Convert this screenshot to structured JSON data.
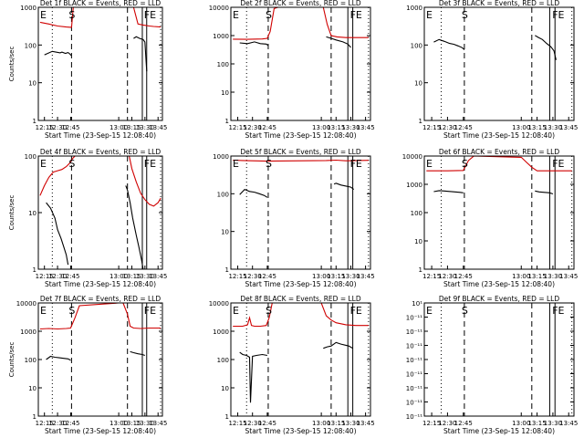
{
  "chart_data": [
    {
      "type": "line",
      "title": "Det 1f BLACK = Events, RED = LLD",
      "ylabel": "Counts/sec",
      "xlabel": "Start Time (23-Sep-15 12:08:40)",
      "yscale": "log",
      "ylim": [
        1,
        1000
      ],
      "yticks": [
        "1",
        "10",
        "100",
        "1000"
      ],
      "xticks": [
        "12:15",
        "12:30",
        "12:45",
        "13:00",
        "13:15",
        "13:30",
        "13:45"
      ],
      "markers": [
        "E",
        "S",
        "FE"
      ],
      "series": [
        {
          "name": "Events",
          "color": "#000000",
          "x": [
            12.15,
            12.24,
            12.33,
            12.35,
            12.39,
            12.42,
            12.44,
            12.46
          ],
          "y": [
            55,
            68,
            62,
            65,
            60,
            63,
            58,
            52
          ]
        },
        {
          "name": "LLD",
          "color": "#d00000",
          "x": [
            12.1,
            12.2,
            12.3,
            12.4,
            12.45,
            12.46
          ],
          "y": [
            400,
            360,
            320,
            300,
            295,
            290
          ]
        },
        {
          "name": "LLD",
          "color": "#d00000",
          "x": [
            12.46,
            12.48,
            12.55
          ],
          "y": [
            290,
            1000,
            1000
          ]
        },
        {
          "name": "LLD",
          "color": "#d00000",
          "x": [
            13.17,
            13.22,
            13.28,
            13.35,
            13.4,
            13.48
          ],
          "y": [
            1000,
            360,
            340,
            320,
            310,
            300
          ]
        },
        {
          "name": "Events",
          "color": "#000000",
          "x": [
            13.17,
            13.2,
            13.24,
            13.28,
            13.3,
            13.32
          ],
          "y": [
            150,
            165,
            150,
            140,
            120,
            20
          ]
        }
      ]
    },
    {
      "type": "line",
      "title": "Det 2f BLACK = Events, RED = LLD",
      "ylabel": "",
      "xlabel": "Start Time (23-Sep-15 12:08:40)",
      "yscale": "log",
      "ylim": [
        1,
        10000
      ],
      "yticks": [
        "1",
        "10",
        "100",
        "1000",
        "10000"
      ],
      "xticks": [
        "12:15",
        "12:30",
        "12:45",
        "13:00",
        "13:15",
        "13:30",
        "13:45"
      ],
      "markers": [
        "E",
        "S",
        "FE"
      ],
      "series": [
        {
          "name": "Events",
          "color": "#000000",
          "x": [
            12.17,
            12.25,
            12.32,
            12.38,
            12.44,
            12.46
          ],
          "y": [
            550,
            520,
            600,
            520,
            500,
            450
          ]
        },
        {
          "name": "LLD",
          "color": "#d00000",
          "x": [
            12.1,
            12.25,
            12.4,
            12.45,
            12.48,
            12.52,
            12.56
          ],
          "y": [
            750,
            740,
            760,
            800,
            1400,
            9000,
            10000
          ]
        },
        {
          "name": "LLD",
          "color": "#d00000",
          "x": [
            13.02,
            13.06,
            13.1,
            13.16,
            13.25,
            13.35,
            13.48
          ],
          "y": [
            10000,
            2500,
            1000,
            900,
            850,
            850,
            850
          ]
        },
        {
          "name": "Events",
          "color": "#000000",
          "x": [
            13.05,
            13.1,
            13.15,
            13.22,
            13.27,
            13.3
          ],
          "y": [
            900,
            800,
            700,
            600,
            500,
            380
          ]
        }
      ]
    },
    {
      "type": "line",
      "title": "Det 3f BLACK = Events, RED = LLD",
      "ylabel": "",
      "xlabel": "Start Time (23-Sep-15 12:08:40)",
      "yscale": "log",
      "ylim": [
        1,
        1000
      ],
      "yticks": [
        "1",
        "10",
        "100",
        "1000"
      ],
      "xticks": [
        "12:15",
        "12:30",
        "12:45",
        "13:00",
        "13:15",
        "13:30",
        "13:45"
      ],
      "markers": [
        "E",
        "S",
        "FE"
      ],
      "series": [
        {
          "name": "Events",
          "color": "#000000",
          "x": [
            12.17,
            12.22,
            12.27,
            12.32,
            12.36,
            12.4,
            12.44,
            12.46
          ],
          "y": [
            120,
            140,
            125,
            110,
            105,
            95,
            85,
            75
          ]
        },
        {
          "name": "Events",
          "color": "#000000",
          "x": [
            13.13,
            13.16,
            13.2,
            13.24,
            13.28,
            13.31,
            13.33
          ],
          "y": [
            180,
            160,
            140,
            110,
            90,
            70,
            40
          ]
        }
      ]
    },
    {
      "type": "line",
      "title": "Det 4f BLACK = Events, RED = LLD",
      "ylabel": "Counts/sec",
      "xlabel": "Start Time (23-Sep-15 12:08:40)",
      "yscale": "log",
      "ylim": [
        1,
        100
      ],
      "yticks": [
        "1",
        "10",
        "100"
      ],
      "xticks": [
        "12:15",
        "12:30",
        "12:45",
        "13:00",
        "13:15",
        "13:30",
        "13:45"
      ],
      "markers": [
        "E",
        "S",
        "FE"
      ],
      "series": [
        {
          "name": "LLD",
          "color": "#d00000",
          "x": [
            12.1,
            12.15,
            12.2,
            12.25,
            12.3,
            12.35,
            12.4,
            12.44,
            12.47,
            12.5
          ],
          "y": [
            20,
            30,
            42,
            52,
            55,
            58,
            65,
            75,
            90,
            100
          ]
        },
        {
          "name": "LLD",
          "color": "#d00000",
          "x": [
            13.12,
            13.15,
            13.2,
            13.25,
            13.3,
            13.35,
            13.4,
            13.45,
            13.48
          ],
          "y": [
            100,
            60,
            35,
            22,
            17,
            14,
            13,
            15,
            18
          ]
        },
        {
          "name": "Events",
          "color": "#000000",
          "x": [
            12.17,
            12.22,
            12.27,
            12.3,
            12.34,
            12.37,
            12.4,
            12.42
          ],
          "y": [
            15,
            12,
            8,
            5,
            3.5,
            2.5,
            1.8,
            1.2
          ]
        },
        {
          "name": "Events",
          "color": "#000000",
          "x": [
            13.08,
            13.1,
            13.13,
            13.16,
            13.2,
            13.23,
            13.26,
            13.28
          ],
          "y": [
            30,
            25,
            15,
            8,
            4,
            2.5,
            1.5,
            1
          ]
        }
      ]
    },
    {
      "type": "line",
      "title": "Det 5f BLACK = Events, RED = LLD",
      "ylabel": "",
      "xlabel": "Start Time (23-Sep-15 12:08:40)",
      "yscale": "log",
      "ylim": [
        1,
        1000
      ],
      "yticks": [
        "1",
        "10",
        "100",
        "1000"
      ],
      "xticks": [
        "12:15",
        "12:30",
        "12:45",
        "13:00",
        "13:15",
        "13:30",
        "13:45"
      ],
      "markers": [
        "E",
        "S",
        "FE"
      ],
      "series": [
        {
          "name": "LLD",
          "color": "#d00000",
          "x": [
            12.1,
            12.2,
            12.3,
            12.4,
            12.45,
            12.55,
            13.05,
            13.15,
            13.25,
            13.35,
            13.48
          ],
          "y": [
            780,
            760,
            750,
            740,
            730,
            740,
            760,
            780,
            750,
            760,
            770
          ]
        },
        {
          "name": "Events",
          "color": "#000000",
          "x": [
            12.17,
            12.22,
            12.27,
            12.32,
            12.37,
            12.42,
            12.45
          ],
          "y": [
            95,
            130,
            115,
            110,
            100,
            90,
            80
          ]
        },
        {
          "name": "Events",
          "color": "#000000",
          "x": [
            13.13,
            13.15,
            13.2,
            13.25,
            13.3,
            13.33
          ],
          "y": [
            180,
            190,
            170,
            160,
            150,
            130
          ]
        }
      ]
    },
    {
      "type": "line",
      "title": "Det 6f BLACK = Events, RED = LLD",
      "ylabel": "",
      "xlabel": "Start Time (23-Sep-15 12:08:40)",
      "yscale": "log",
      "ylim": [
        1,
        10000
      ],
      "yticks": [
        "1",
        "10",
        "100",
        "1000",
        "10000"
      ],
      "xticks": [
        "12:15",
        "12:30",
        "12:45",
        "13:00",
        "13:15",
        "13:30",
        "13:45"
      ],
      "markers": [
        "E",
        "S",
        "FE"
      ],
      "series": [
        {
          "name": "LLD",
          "color": "#d00000",
          "x": [
            12.1,
            12.3,
            12.45,
            12.5,
            12.55,
            13.0,
            13.05,
            13.1,
            13.15,
            13.3,
            13.48
          ],
          "y": [
            3000,
            3000,
            3100,
            7000,
            10000,
            9000,
            6000,
            4000,
            3000,
            3000,
            3000
          ]
        },
        {
          "name": "Events",
          "color": "#000000",
          "x": [
            12.17,
            12.22,
            12.27,
            12.32,
            12.37,
            12.42,
            12.45
          ],
          "y": [
            550,
            600,
            580,
            560,
            540,
            520,
            500
          ]
        },
        {
          "name": "Events",
          "color": "#000000",
          "x": [
            13.13,
            13.17,
            13.22,
            13.27,
            13.3
          ],
          "y": [
            580,
            540,
            520,
            500,
            460
          ]
        }
      ]
    },
    {
      "type": "line",
      "title": "Det 7f BLACK = Events, RED = LLD",
      "ylabel": "Counts/sec",
      "xlabel": "Start Time (23-Sep-15 12:08:40)",
      "yscale": "log",
      "ylim": [
        1,
        10000
      ],
      "yticks": [
        "1",
        "10",
        "100",
        "1000",
        "10000"
      ],
      "xticks": [
        "12:15",
        "12:30",
        "12:45",
        "13:00",
        "13:15",
        "13:30",
        "13:45"
      ],
      "markers": [
        "E",
        "S",
        "FE"
      ],
      "series": [
        {
          "name": "LLD",
          "color": "#d00000",
          "x": [
            12.1,
            12.2,
            12.3,
            12.4,
            12.45,
            12.5,
            12.55,
            13.0
          ],
          "y": [
            1200,
            1250,
            1200,
            1250,
            1300,
            3000,
            8000,
            10000
          ]
        },
        {
          "name": "LLD",
          "color": "#d00000",
          "x": [
            13.05,
            13.1,
            13.13,
            13.17,
            13.25,
            13.35,
            13.48
          ],
          "y": [
            10000,
            4000,
            1500,
            1300,
            1250,
            1300,
            1300
          ]
        },
        {
          "name": "Events",
          "color": "#000000",
          "x": [
            12.17,
            12.22,
            12.27,
            12.32,
            12.37,
            12.42,
            12.45
          ],
          "y": [
            100,
            130,
            120,
            115,
            110,
            105,
            95
          ]
        },
        {
          "name": "Events",
          "color": "#000000",
          "x": [
            13.13,
            13.17,
            13.22,
            13.27,
            13.3
          ],
          "y": [
            190,
            175,
            160,
            150,
            140
          ]
        }
      ]
    },
    {
      "type": "line",
      "title": "Det 8f BLACK = Events, RED = LLD",
      "ylabel": "",
      "xlabel": "Start Time (23-Sep-15 12:08:40)",
      "yscale": "log",
      "ylim": [
        1,
        10000
      ],
      "yticks": [
        "1",
        "10",
        "100",
        "1000",
        "10000"
      ],
      "xticks": [
        "12:15",
        "12:30",
        "12:45",
        "13:00",
        "13:15",
        "13:30",
        "13:45"
      ],
      "markers": [
        "E",
        "S",
        "FE"
      ],
      "series": [
        {
          "name": "LLD",
          "color": "#d00000",
          "x": [
            12.1,
            12.2,
            12.25,
            12.27,
            12.29,
            12.32,
            12.38,
            12.44,
            12.47,
            12.5
          ],
          "y": [
            1500,
            1500,
            1700,
            3000,
            1600,
            1500,
            1500,
            1600,
            3000,
            10000
          ]
        },
        {
          "name": "LLD",
          "color": "#d00000",
          "x": [
            13.0,
            13.05,
            13.1,
            13.15,
            13.25,
            13.35,
            13.48
          ],
          "y": [
            10000,
            3500,
            2500,
            2000,
            1700,
            1600,
            1600
          ]
        },
        {
          "name": "Events",
          "color": "#000000",
          "x": [
            12.17,
            12.2,
            12.24,
            12.27,
            12.28,
            12.3,
            12.34,
            12.4,
            12.45
          ],
          "y": [
            180,
            150,
            140,
            120,
            3,
            130,
            140,
            150,
            140
          ]
        },
        {
          "name": "Events",
          "color": "#000000",
          "x": [
            13.02,
            13.06,
            13.1,
            13.15,
            13.2,
            13.28,
            13.32
          ],
          "y": [
            250,
            280,
            300,
            400,
            350,
            300,
            250
          ]
        }
      ]
    },
    {
      "type": "line",
      "title": "Det 9f BLACK = Events, RED = LLD",
      "ylabel": "",
      "xlabel": "Start Time (23-Sep-15 12:08:40)",
      "yscale": "log",
      "ylim": [
        1e-11,
        1e-09
      ],
      "yticks": [
        "10⁻¹¹",
        "10⁻¹¹",
        "10⁻¹¹",
        "10⁻¹¹",
        "10⁻¹¹",
        "10⁻¹¹",
        "10⁻¹¹",
        "10⁻¹¹",
        "10¹"
      ],
      "xticks": [
        "12:15",
        "12:30",
        "12:45",
        "13:00",
        "13:15",
        "13:30",
        "13:45"
      ],
      "markers": [
        "E",
        "S",
        "FE"
      ],
      "series": []
    }
  ]
}
